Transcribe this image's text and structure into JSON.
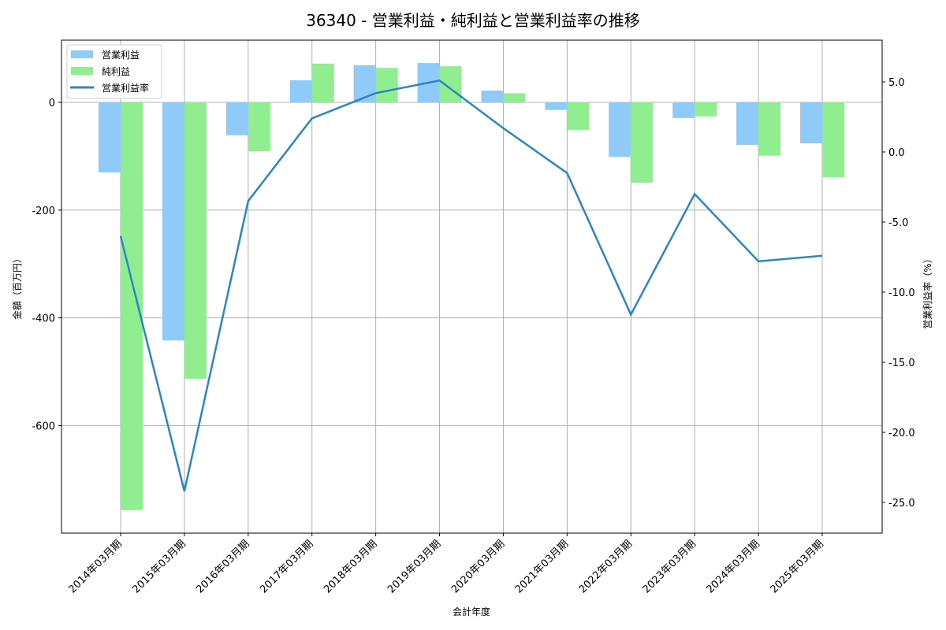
{
  "chart_data": {
    "type": "bar+line",
    "title": "36340 - 営業利益・純利益と営業利益率の推移",
    "xlabel": "会計年度",
    "ylabel": "金額（百万円）",
    "ylabel_right": "営業利益率（%）",
    "categories": [
      "2014年03月期",
      "2015年03月期",
      "2016年03月期",
      "2017年03月期",
      "2018年03月期",
      "2019年03月期",
      "2020年03月期",
      "2021年03月期",
      "2022年03月期",
      "2023年03月期",
      "2024年03月期",
      "2025年03月期"
    ],
    "series": [
      {
        "name": "営業利益",
        "type": "bar",
        "axis": "left",
        "color": "#90CAF9",
        "values": [
          -130,
          -442,
          -61,
          41,
          69,
          73,
          22,
          -14,
          -101,
          -29,
          -79,
          -76
        ]
      },
      {
        "name": "純利益",
        "type": "bar",
        "axis": "left",
        "color": "#90EE90",
        "values": [
          -757,
          -513,
          -91,
          72,
          64,
          67,
          17,
          -51,
          -149,
          -26,
          -99,
          -139
        ]
      },
      {
        "name": "営業利益率",
        "type": "line",
        "axis": "right",
        "color": "#2E86C1",
        "values": [
          -6.0,
          -24.2,
          -3.5,
          2.4,
          4.2,
          5.1,
          1.7,
          -1.5,
          -11.6,
          -3.0,
          -7.8,
          -7.4
        ]
      }
    ],
    "ylim": [
      -800,
      115
    ],
    "ylim_right": [
      -27.2,
      8.2
    ],
    "yticks": [
      0,
      -200,
      -400,
      -600
    ],
    "yticks_right": [
      5.0,
      0.0,
      -5.0,
      -10.0,
      -15.0,
      -20.0,
      -25.0
    ],
    "grid": true,
    "legend_position": "upper left"
  },
  "legend": [
    "営業利益",
    "純利益",
    "営業利益率"
  ]
}
